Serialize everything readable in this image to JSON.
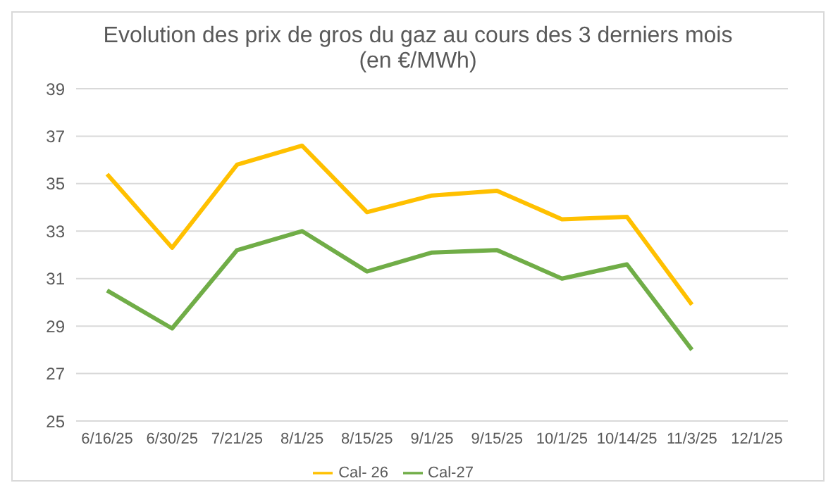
{
  "chart_data": {
    "type": "line",
    "title": "Evolution des prix de gros du gaz au cours des 3 derniers mois",
    "subtitle": "(en €/MWh)",
    "categories": [
      "6/16/25",
      "6/30/25",
      "7/21/25",
      "8/1/25",
      "8/15/25",
      "9/1/25",
      "9/15/25",
      "10/1/25",
      "10/14/25",
      "11/3/25",
      "12/1/25"
    ],
    "series": [
      {
        "name": "Cal- 26",
        "color": "#ffc000",
        "values": [
          35.4,
          32.3,
          35.8,
          36.6,
          33.8,
          34.5,
          34.7,
          33.5,
          33.6,
          29.9,
          null
        ]
      },
      {
        "name": "Cal-27",
        "color": "#70ad47",
        "values": [
          30.5,
          28.9,
          32.2,
          33.0,
          31.3,
          32.1,
          32.2,
          31.0,
          31.6,
          28.0,
          null
        ]
      }
    ],
    "ylim": [
      25,
      39
    ],
    "yticks": [
      25,
      27,
      29,
      31,
      33,
      35,
      37,
      39
    ],
    "grid": "y",
    "legend": "bottom",
    "marker": "none",
    "line_style": "solid"
  }
}
